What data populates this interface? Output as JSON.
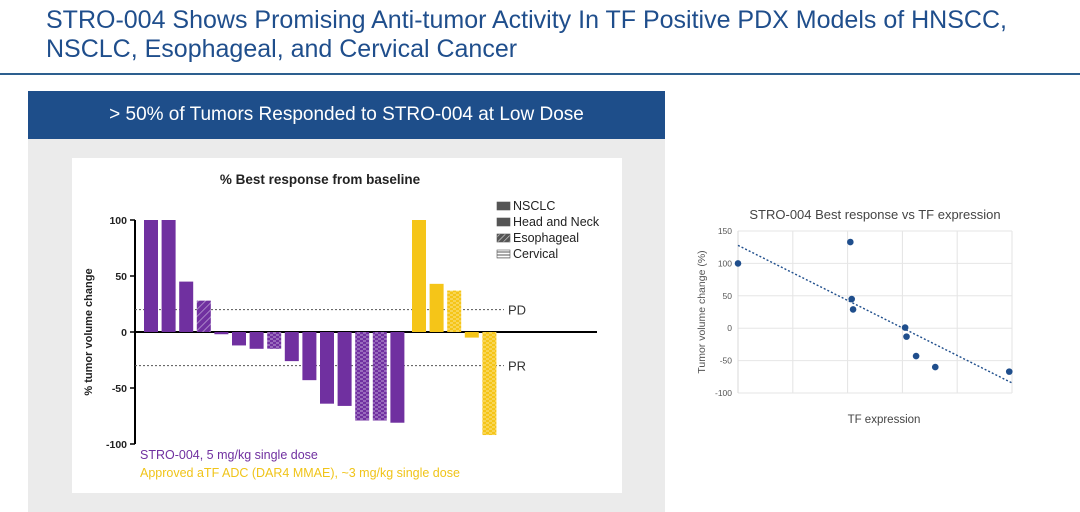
{
  "slide_title": "STRO-004 Shows Promising Anti-tumor Activity In TF Positive PDX Models of HNSCC, NSCLC, Esophageal, and Cervical Cancer",
  "panel_header": "> 50% of Tumors Responded to STRO-004 at Low Dose",
  "chart_data": [
    {
      "type": "bar",
      "title": "% Best response from baseline",
      "ylabel": "% tumor volume change",
      "ylim": [
        -100,
        100
      ],
      "yticks": [
        "100",
        "50",
        "0",
        "-50",
        "-100"
      ],
      "legend": [
        "NSCLC",
        "Head and Neck",
        "Esophageal",
        "Cervical"
      ],
      "reference_lines": [
        {
          "label": "PD",
          "value": 20
        },
        {
          "label": "PR",
          "value": -30
        }
      ],
      "series": [
        {
          "name": "STRO-004, 5 mg/kg single dose",
          "color": "#7030a0",
          "values": [
            100,
            100,
            45,
            28,
            -2,
            -12,
            -15,
            -15,
            -26,
            -43,
            -64,
            -66,
            -79,
            -79,
            -81
          ],
          "patterns": [
            "solid",
            "solid",
            "solid",
            "esophageal",
            "solid",
            "solid",
            "solid",
            "cervical",
            "solid",
            "solid",
            "solid",
            "solid",
            "cervical",
            "cervical",
            "solid"
          ]
        },
        {
          "name": "Approved aTF ADC (DAR4 MMAE), ~3 mg/kg single dose",
          "color": "#f5c518",
          "values": [
            100,
            43,
            37,
            -5,
            -92
          ],
          "patterns": [
            "solid",
            "solid",
            "cervical",
            "solid",
            "cervical"
          ]
        }
      ]
    },
    {
      "type": "scatter",
      "title": "STRO-004 Best response vs TF expression",
      "xlabel": "TF expression",
      "ylabel": "Tumor volume change (%)",
      "ylim": [
        -100,
        150
      ],
      "yticks": [
        "150",
        "100",
        "50",
        "0",
        "-50",
        "-100"
      ],
      "xlim": [
        0,
        1
      ],
      "points": [
        {
          "x": 0.0,
          "y": 100
        },
        {
          "x": 0.41,
          "y": 133
        },
        {
          "x": 0.415,
          "y": 45
        },
        {
          "x": 0.42,
          "y": 29
        },
        {
          "x": 0.61,
          "y": 1
        },
        {
          "x": 0.615,
          "y": -13
        },
        {
          "x": 0.65,
          "y": -43
        },
        {
          "x": 0.72,
          "y": -60
        },
        {
          "x": 0.99,
          "y": -67
        }
      ],
      "trendline": {
        "type": "linear",
        "style": "dotted"
      },
      "color": "#1f4e8c"
    }
  ]
}
